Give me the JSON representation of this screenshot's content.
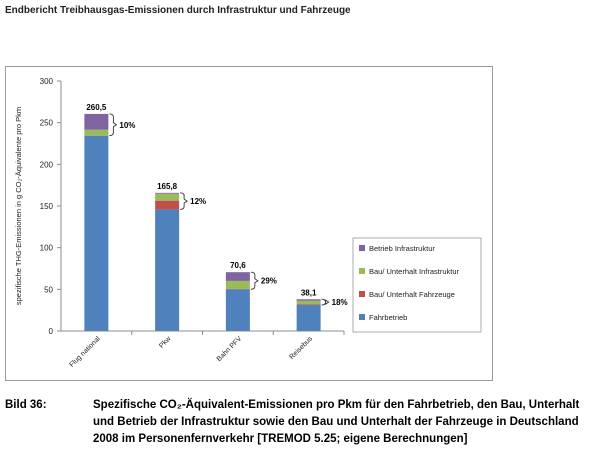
{
  "header": "Endbericht Treibhausgas-Emissionen durch Infrastruktur und Fahrzeuge",
  "caption": {
    "label": "Bild 36:",
    "text": "Spezifische CO₂-Äquivalent-Emissionen pro Pkm für den Fahrbetrieb, den Bau, Unterhalt und Betrieb der Infrastruktur sowie den Bau und Unterhalt der Fahrzeuge in Deutschland 2008 im Personenfernverkehr [TREMOD 5.25; eigene Berechnungen]"
  },
  "chart_data": {
    "type": "bar",
    "stacked": true,
    "ylabel": "spezifische THG-Emissionen in g CO₂-Äquivalente pro  Pkm",
    "ylim": [
      0,
      300
    ],
    "yticks": [
      0,
      50,
      100,
      150,
      200,
      250,
      300
    ],
    "categories": [
      "Flug national",
      "Pkw",
      "Bahn PFV",
      "Reisebus"
    ],
    "series": [
      {
        "name": "Fahrbetrieb",
        "color": "#4F81BD",
        "values": [
          234.4,
          145.9,
          50.1,
          31.2
        ]
      },
      {
        "name": "Bau/ Unterhalt Fahrzeuge",
        "color": "#C0504D",
        "values": [
          0,
          10.5,
          0.4,
          0.9
        ]
      },
      {
        "name": "Bau/ Unterhalt Infrastruktur",
        "color": "#9BBB59",
        "values": [
          7.1,
          8.4,
          9.6,
          4.1
        ]
      },
      {
        "name": "Betrieb Infrastruktur",
        "color": "#8064A2",
        "values": [
          19.0,
          1.0,
          10.5,
          1.9
        ]
      }
    ],
    "totals": [
      "260,5",
      "165,8",
      "70,6",
      "38,1"
    ],
    "share_labels": [
      "10%",
      "12%",
      "29%",
      "18%"
    ],
    "grid": false,
    "legend_position": "right"
  }
}
